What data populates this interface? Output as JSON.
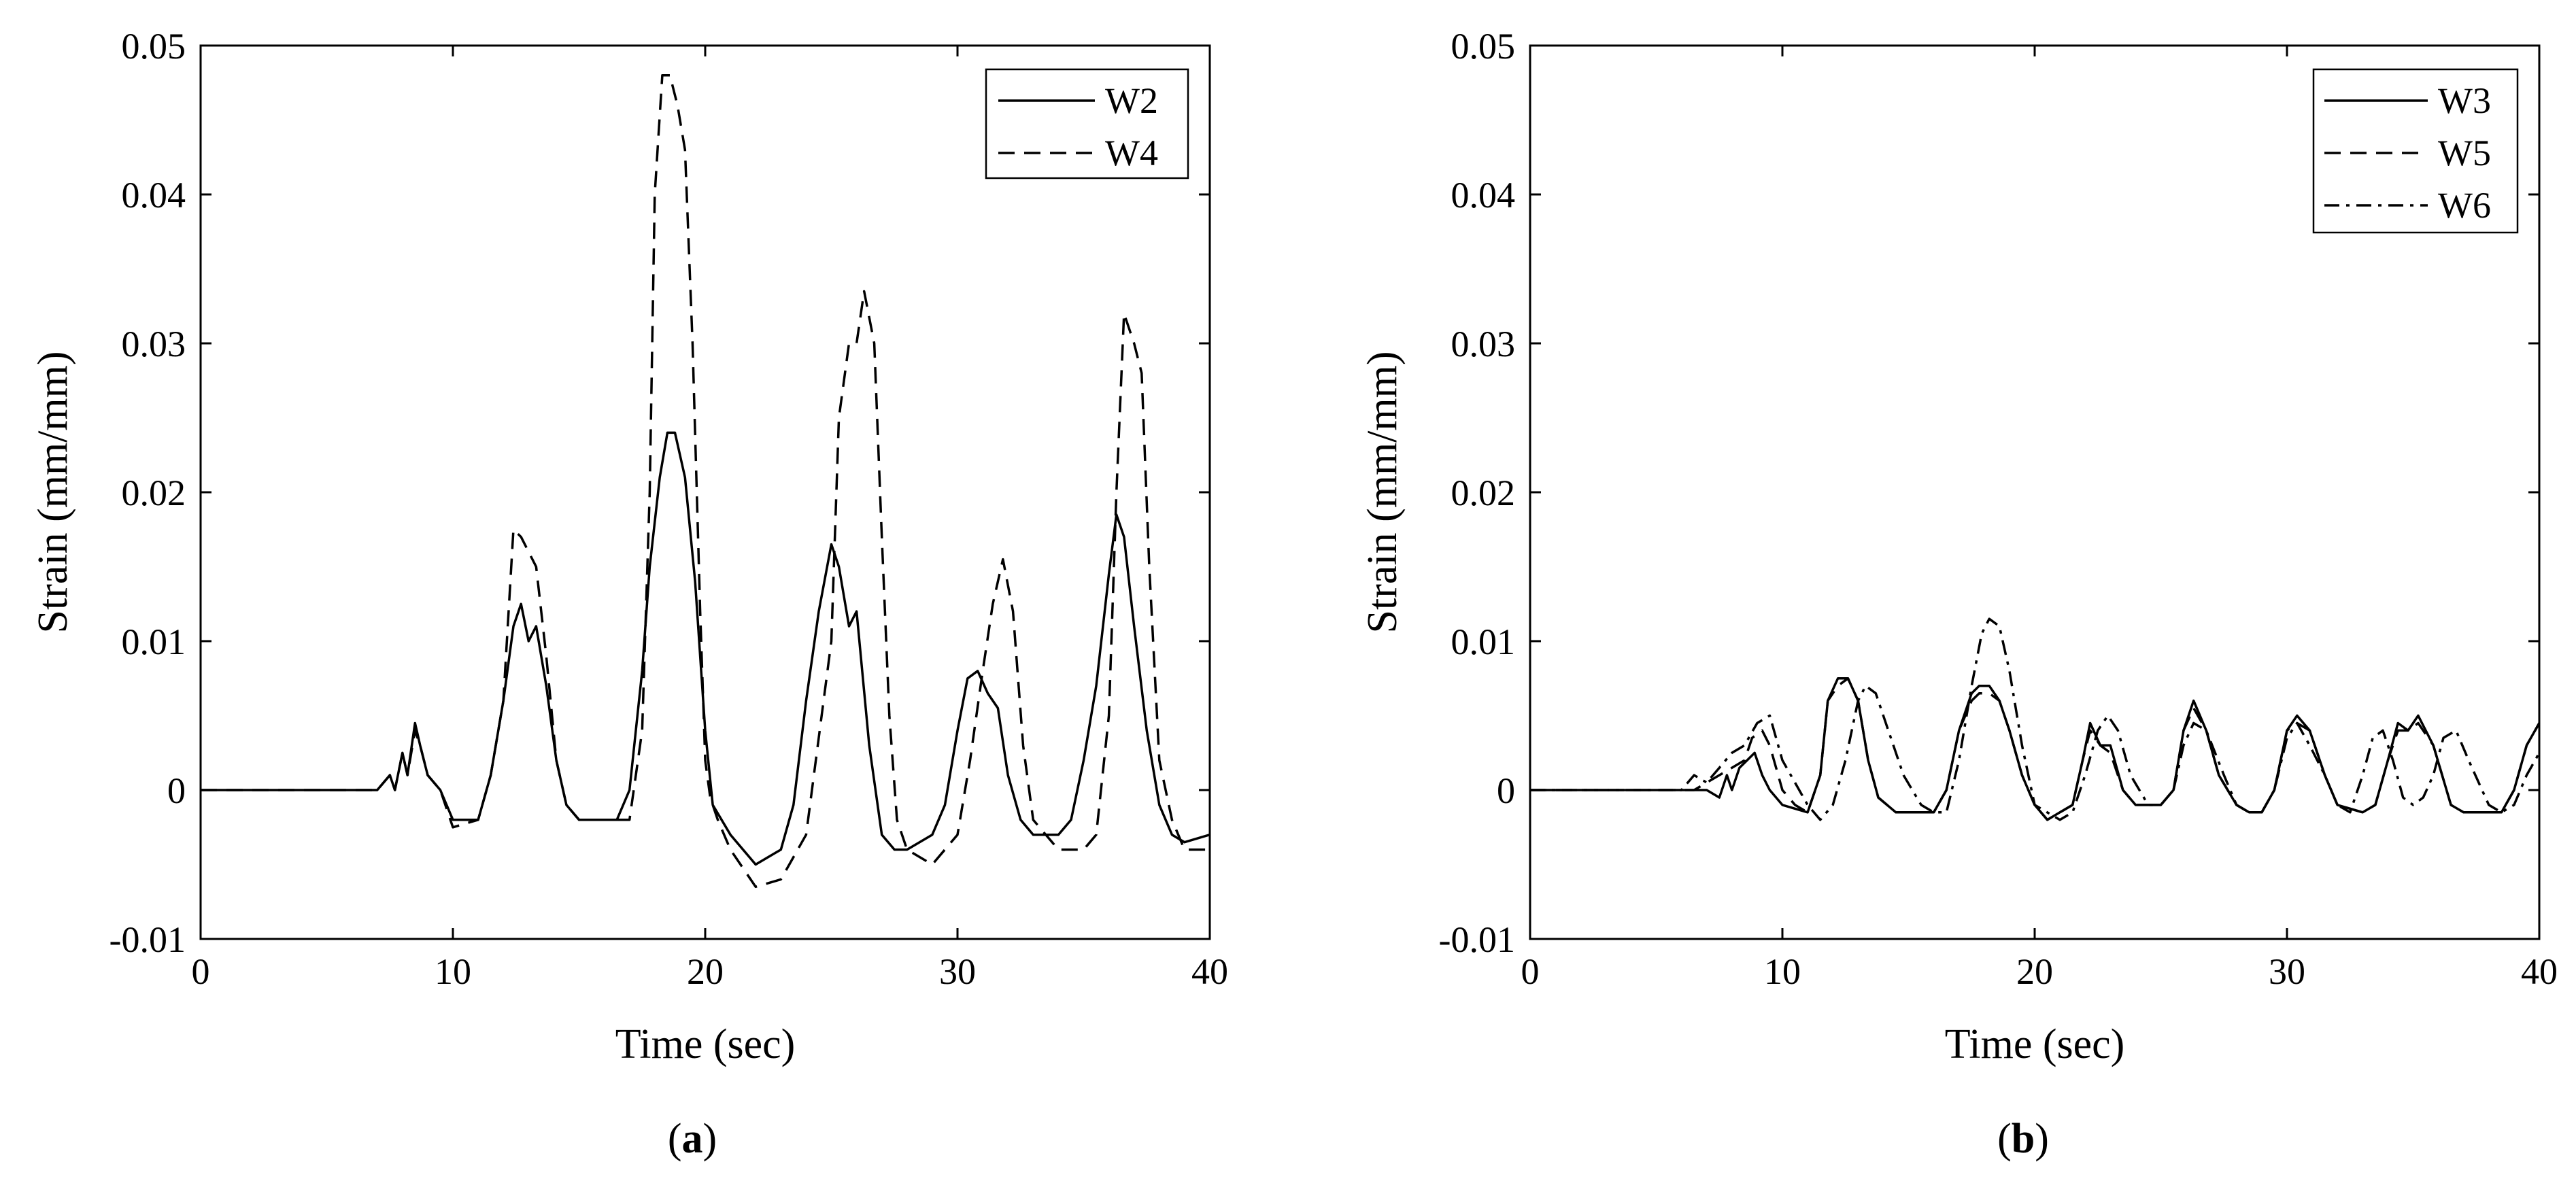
{
  "chart_data": [
    {
      "type": "line",
      "panel_label": "a",
      "xlabel": "Time (sec)",
      "ylabel": "Strain (mm/mm)",
      "xlim": [
        0,
        40
      ],
      "ylim": [
        -0.01,
        0.05
      ],
      "xticks": [
        0,
        10,
        20,
        30,
        40
      ],
      "yticks": [
        -0.01,
        0,
        0.01,
        0.02,
        0.03,
        0.04,
        0.05
      ],
      "ytick_labels": [
        "-0.01",
        "0",
        "0.01",
        "0.02",
        "0.03",
        "0.04",
        "0.05"
      ],
      "grid": false,
      "legend_position": "top-right",
      "series": [
        {
          "name": "W2",
          "style": "solid",
          "x": [
            0,
            5,
            7,
            7.5,
            7.7,
            8.0,
            8.2,
            8.5,
            8.7,
            9.0,
            9.5,
            10,
            11,
            11.5,
            12,
            12.4,
            12.7,
            13.0,
            13.3,
            13.7,
            14.1,
            14.5,
            15,
            16,
            16.5,
            17,
            17.5,
            17.8,
            18.2,
            18.5,
            18.8,
            19.2,
            19.6,
            20.0,
            20.3,
            21,
            22,
            22.5,
            23,
            23.5,
            24.0,
            24.5,
            25.0,
            25.3,
            25.7,
            26.0,
            26.5,
            27.0,
            27.5,
            28,
            29,
            29.5,
            30.0,
            30.4,
            30.8,
            31.2,
            31.6,
            32,
            32.5,
            33,
            34,
            34.5,
            35,
            35.5,
            36.0,
            36.3,
            36.6,
            37.0,
            37.5,
            38,
            38.5,
            39,
            40
          ],
          "y": [
            0,
            0,
            0,
            0.001,
            0,
            0.0025,
            0.001,
            0.0045,
            0.003,
            0.001,
            0,
            -0.002,
            -0.002,
            0.001,
            0.006,
            0.011,
            0.0125,
            0.01,
            0.011,
            0.007,
            0.002,
            -0.001,
            -0.002,
            -0.002,
            -0.002,
            0,
            0.008,
            0.015,
            0.021,
            0.024,
            0.024,
            0.021,
            0.014,
            0.004,
            -0.001,
            -0.003,
            -0.005,
            -0.0045,
            -0.004,
            -0.001,
            0.006,
            0.012,
            0.0165,
            0.015,
            0.011,
            0.012,
            0.003,
            -0.003,
            -0.004,
            -0.004,
            -0.003,
            -0.001,
            0.004,
            0.0075,
            0.008,
            0.0065,
            0.0055,
            0.001,
            -0.002,
            -0.003,
            -0.003,
            -0.002,
            0.002,
            0.007,
            0.0145,
            0.0185,
            0.017,
            0.011,
            0.004,
            -0.001,
            -0.003,
            -0.0035,
            -0.003
          ]
        },
        {
          "name": "W4",
          "style": "dashed",
          "x": [
            0,
            5,
            7,
            7.5,
            7.7,
            8.0,
            8.2,
            8.5,
            8.7,
            9.0,
            9.5,
            10,
            11,
            11.5,
            12,
            12.4,
            12.7,
            13.0,
            13.3,
            13.7,
            14.1,
            14.5,
            15,
            16,
            17,
            17.5,
            17.8,
            18.0,
            18.3,
            18.6,
            18.9,
            19.2,
            19.5,
            19.8,
            20.0,
            20.2,
            20.5,
            21,
            22,
            23,
            24,
            25,
            25.3,
            25.7,
            26.0,
            26.3,
            26.7,
            27.0,
            27.3,
            27.6,
            28,
            29,
            30,
            30.5,
            31.0,
            31.4,
            31.8,
            32.2,
            32.6,
            33,
            34,
            35,
            35.5,
            36.0,
            36.3,
            36.6,
            37.0,
            37.3,
            37.6,
            38,
            38.5,
            39,
            40
          ],
          "y": [
            0,
            0,
            0,
            0.001,
            0,
            0.0025,
            0.001,
            0.004,
            0.003,
            0.001,
            0,
            -0.0025,
            -0.002,
            0.001,
            0.006,
            0.0175,
            0.017,
            0.016,
            0.015,
            0.009,
            0.002,
            -0.001,
            -0.002,
            -0.002,
            -0.002,
            0.004,
            0.02,
            0.04,
            0.048,
            0.048,
            0.046,
            0.043,
            0.03,
            0.012,
            0.002,
            -0.0005,
            -0.002,
            -0.004,
            -0.0065,
            -0.006,
            -0.003,
            0.01,
            0.025,
            0.03,
            0.03,
            0.0335,
            0.03,
            0.017,
            0.005,
            -0.002,
            -0.004,
            -0.005,
            -0.003,
            0.002,
            0.008,
            0.0125,
            0.0155,
            0.012,
            0.003,
            -0.002,
            -0.004,
            -0.004,
            -0.003,
            0.005,
            0.02,
            0.032,
            0.03,
            0.028,
            0.015,
            0.002,
            -0.002,
            -0.004,
            -0.004
          ]
        }
      ]
    },
    {
      "type": "line",
      "panel_label": "b",
      "xlabel": "Time (sec)",
      "ylabel": "Strain (mm/mm)",
      "xlim": [
        0,
        40
      ],
      "ylim": [
        -0.01,
        0.05
      ],
      "xticks": [
        0,
        10,
        20,
        30,
        40
      ],
      "yticks": [
        -0.01,
        0,
        0.01,
        0.02,
        0.03,
        0.04,
        0.05
      ],
      "ytick_labels": [
        "-0.01",
        "0",
        "0.01",
        "0.02",
        "0.03",
        "0.04",
        "0.05"
      ],
      "grid": false,
      "legend_position": "top-right",
      "series": [
        {
          "name": "W3",
          "style": "solid",
          "x": [
            0,
            5,
            7,
            7.5,
            7.8,
            8.0,
            8.3,
            8.6,
            8.9,
            9.2,
            9.5,
            10,
            11,
            11.5,
            11.8,
            12.2,
            12.6,
            13.0,
            13.4,
            13.8,
            14.5,
            15,
            16,
            16.5,
            17.0,
            17.5,
            17.8,
            18.2,
            18.6,
            19.0,
            19.5,
            20,
            20.5,
            21,
            21.5,
            21.9,
            22.2,
            22.6,
            23.0,
            23.5,
            24,
            25,
            25.5,
            25.9,
            26.3,
            26.8,
            27.3,
            28,
            28.5,
            29,
            29.5,
            30.0,
            30.4,
            30.9,
            31.5,
            32,
            33,
            33.5,
            34.0,
            34.4,
            34.8,
            35.2,
            35.8,
            36.5,
            37,
            38,
            38.5,
            39.0,
            39.5,
            40
          ],
          "y": [
            0,
            0,
            0,
            -0.0005,
            0.001,
            0,
            0.0015,
            0.002,
            0.0025,
            0.001,
            0,
            -0.001,
            -0.0015,
            0.001,
            0.006,
            0.0075,
            0.0075,
            0.006,
            0.002,
            -0.0005,
            -0.0015,
            -0.0015,
            -0.0015,
            0,
            0.004,
            0.0065,
            0.007,
            0.007,
            0.006,
            0.004,
            0.001,
            -0.001,
            -0.002,
            -0.0015,
            -0.001,
            0.002,
            0.0045,
            0.003,
            0.003,
            0,
            -0.001,
            -0.001,
            0,
            0.004,
            0.006,
            0.004,
            0.001,
            -0.001,
            -0.0015,
            -0.0015,
            0,
            0.004,
            0.005,
            0.004,
            0.001,
            -0.001,
            -0.0015,
            -0.001,
            0.002,
            0.0045,
            0.004,
            0.005,
            0.003,
            -0.001,
            -0.0015,
            -0.0015,
            -0.0015,
            0,
            0.003,
            0.0045
          ]
        },
        {
          "name": "W5",
          "style": "dashed",
          "x": [
            0,
            5,
            6.5,
            7,
            7.5,
            8,
            8.5,
            8.8,
            9.2,
            9.5,
            10,
            10.5,
            11,
            11.5,
            11.8,
            12.2,
            12.6,
            13.0,
            13.4,
            13.8,
            14.5,
            15,
            16,
            16.5,
            17.0,
            17.5,
            17.8,
            18.2,
            18.6,
            19.0,
            19.5,
            20,
            20.5,
            21,
            21.5,
            21.9,
            22.2,
            22.6,
            23.0,
            23.5,
            24,
            25,
            25.5,
            25.9,
            26.3,
            26.8,
            27.3,
            28,
            28.5,
            29,
            29.5,
            30.0,
            30.4,
            30.9,
            31.5,
            32,
            33,
            33.5,
            34.0,
            34.4,
            34.8,
            35.2,
            35.8,
            36.5,
            37,
            38,
            38.5,
            39.0,
            39.5,
            40
          ],
          "y": [
            0,
            0,
            0,
            0.0005,
            0.001,
            0.0015,
            0.002,
            0.0035,
            0.004,
            0.003,
            0,
            -0.001,
            -0.0015,
            0.001,
            0.006,
            0.007,
            0.0075,
            0.006,
            0.002,
            -0.0005,
            -0.0015,
            -0.0015,
            -0.0015,
            0,
            0.004,
            0.006,
            0.0065,
            0.0065,
            0.006,
            0.004,
            0.001,
            -0.001,
            -0.002,
            -0.0015,
            -0.001,
            0.002,
            0.004,
            0.003,
            0.0025,
            0,
            -0.001,
            -0.001,
            0,
            0.004,
            0.0055,
            0.004,
            0.001,
            -0.001,
            -0.0015,
            -0.0015,
            0,
            0.004,
            0.0045,
            0.004,
            0.001,
            -0.001,
            -0.0015,
            -0.001,
            0.002,
            0.004,
            0.004,
            0.0045,
            0.003,
            -0.001,
            -0.0015,
            -0.0015,
            -0.0015,
            0,
            0.003,
            0.0045
          ]
        },
        {
          "name": "W6",
          "style": "dashdot",
          "x": [
            0,
            5,
            6,
            6.5,
            7,
            7.5,
            8,
            8.5,
            9.0,
            9.5,
            10,
            11,
            11.5,
            12,
            12.5,
            13.0,
            13.3,
            13.7,
            14.2,
            14.8,
            15.5,
            16,
            16.5,
            17.0,
            17.5,
            17.9,
            18.2,
            18.6,
            19.0,
            19.5,
            20,
            21,
            21.5,
            22.0,
            22.5,
            22.9,
            23.3,
            23.8,
            24.5,
            25,
            25.5,
            25.9,
            26.3,
            26.8,
            27.5,
            28,
            28.5,
            29,
            29.5,
            30.0,
            30.4,
            30.9,
            31.5,
            32,
            32.5,
            33.0,
            33.4,
            33.8,
            34.2,
            34.6,
            35.0,
            35.4,
            35.8,
            36.2,
            36.7,
            37.2,
            38,
            38.5,
            39.0,
            39.5,
            40
          ],
          "y": [
            0,
            0,
            0,
            0.001,
            0.0005,
            0.0015,
            0.0025,
            0.003,
            0.0045,
            0.005,
            0.002,
            -0.001,
            -0.002,
            -0.001,
            0.002,
            0.006,
            0.007,
            0.0065,
            0.004,
            0.001,
            -0.001,
            -0.0015,
            -0.0015,
            0.002,
            0.007,
            0.0105,
            0.0115,
            0.011,
            0.008,
            0.003,
            -0.001,
            -0.002,
            -0.0015,
            0.001,
            0.004,
            0.005,
            0.004,
            0.001,
            -0.001,
            -0.001,
            0,
            0.003,
            0.0045,
            0.004,
            0.001,
            -0.001,
            -0.0015,
            -0.0015,
            0,
            0.0035,
            0.0045,
            0.003,
            0.001,
            -0.001,
            -0.0015,
            0.001,
            0.0035,
            0.004,
            0.002,
            -0.0005,
            -0.001,
            -0.0005,
            0.001,
            0.0035,
            0.004,
            0.002,
            -0.001,
            -0.0015,
            -0.001,
            0.001,
            0.0025
          ]
        }
      ]
    }
  ]
}
